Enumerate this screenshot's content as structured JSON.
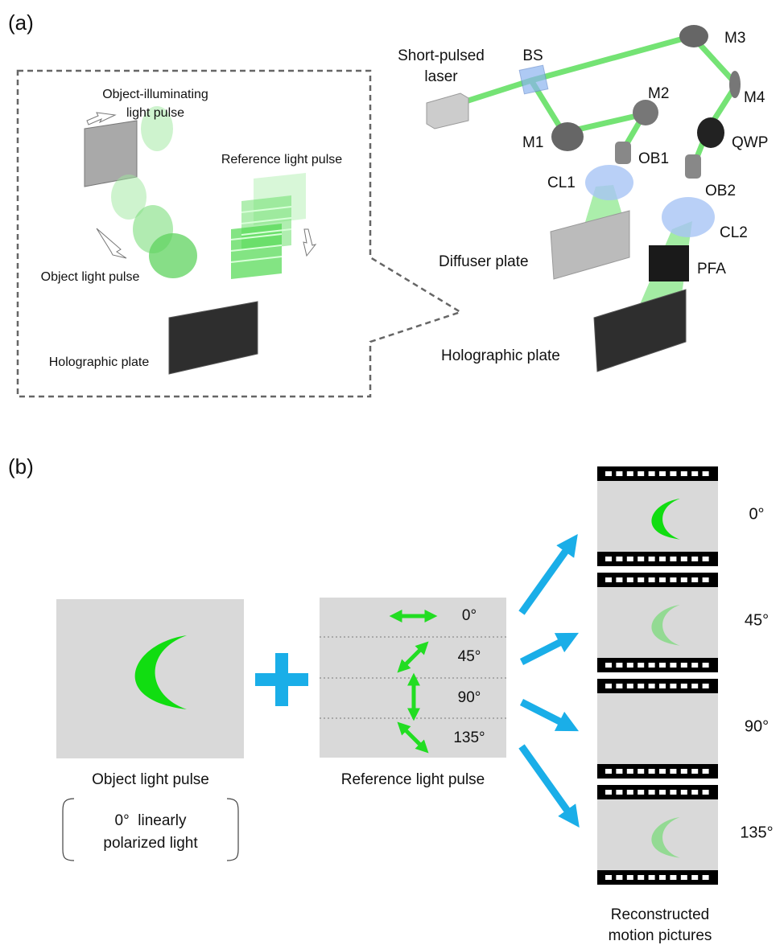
{
  "panel_a": {
    "label": "(a)",
    "inset": {
      "object_illuminating": [
        "Object-illuminating",
        "light pulse"
      ],
      "reference": "Reference light pulse",
      "object": "Object light pulse",
      "holographic_plate": "Holographic plate"
    },
    "setup": {
      "laser": [
        "Short-pulsed",
        "laser"
      ],
      "bs": "BS",
      "m1": "M1",
      "m2": "M2",
      "m3": "M3",
      "m4": "M4",
      "ob1": "OB1",
      "ob2": "OB2",
      "qwp": "QWP",
      "cl1": "CL1",
      "cl2": "CL2",
      "diffuser": "Diffuser plate",
      "pfa": "PFA",
      "holographic_plate": "Holographic plate"
    }
  },
  "panel_b": {
    "label": "(b)",
    "object_caption": "Object light pulse",
    "object_note": [
      "0°  linearly",
      "polarized light"
    ],
    "reference_caption": "Reference light pulse",
    "reference_angles": [
      "0°",
      "45°",
      "90°",
      "135°"
    ],
    "frame_angles": [
      "0°",
      "45°",
      "90°",
      "135°"
    ],
    "film_caption": [
      "Reconstructed",
      "motion pictures"
    ]
  }
}
